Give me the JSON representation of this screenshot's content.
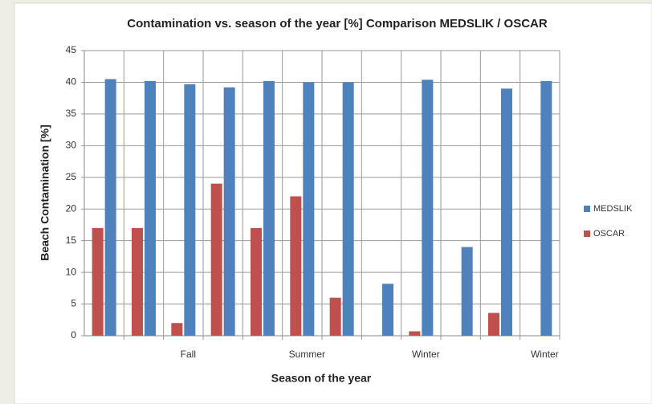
{
  "chart_data": {
    "type": "bar",
    "title": "Contamination vs. season of the year [%] Comparison MEDSLIK / OSCAR",
    "x_label": "Season of the year",
    "y_label": "Beach Contamination [%]",
    "categories": [
      null,
      null,
      "Fall",
      null,
      null,
      "Summer",
      null,
      null,
      "Winter",
      null,
      null,
      "Winter"
    ],
    "series": [
      {
        "name": "MEDSLIK",
        "color": "#4f81bd",
        "values": [
          40.5,
          40.2,
          39.7,
          39.2,
          40.2,
          40.0,
          40.0,
          8.2,
          40.4,
          14.0,
          39.0,
          40.2
        ]
      },
      {
        "name": "OSCAR",
        "color": "#c0504d",
        "values": [
          17,
          17,
          2,
          24,
          17,
          22,
          6,
          0,
          0.7,
          0,
          3.6,
          0
        ]
      }
    ],
    "ylim": [
      0,
      45
    ],
    "yticks": [
      0,
      5,
      10,
      15,
      20,
      25,
      30,
      35,
      40,
      45
    ],
    "grid": true,
    "legend": "right"
  }
}
